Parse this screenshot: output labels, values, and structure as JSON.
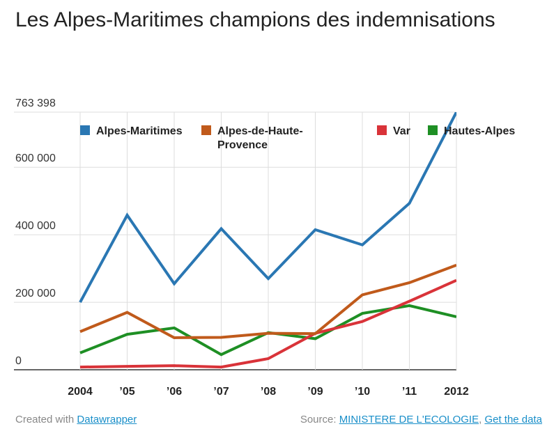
{
  "title": "Les Alpes-Maritimes champions des indemnisations",
  "chart_data": {
    "type": "line",
    "title": "Les Alpes-Maritimes champions des indemnisations",
    "x": [
      "2004",
      "’05",
      "’06",
      "’07",
      "’08",
      "’09",
      "’10",
      "’11",
      "2012"
    ],
    "yticks": [
      {
        "value": 0,
        "label": "0"
      },
      {
        "value": 200000,
        "label": "200 000"
      },
      {
        "value": 400000,
        "label": "400 000"
      },
      {
        "value": 600000,
        "label": "600 000"
      },
      {
        "value": 763398,
        "label": "763 398"
      }
    ],
    "ylim": [
      0,
      763398
    ],
    "xlabel": "",
    "ylabel": "",
    "grid": true,
    "legend_position": "top",
    "series": [
      {
        "name": "Alpes-Maritimes",
        "color": "#2a77b3",
        "values": [
          200000,
          458000,
          255000,
          418000,
          270000,
          415000,
          370000,
          493000,
          763398
        ]
      },
      {
        "name": "Alpes-de-Haute-Provence",
        "color": "#c05a1b",
        "values": [
          113000,
          170000,
          95000,
          96000,
          108000,
          107000,
          222000,
          258000,
          310000
        ]
      },
      {
        "name": "Var",
        "color": "#d93339",
        "values": [
          8000,
          10000,
          12000,
          8000,
          33000,
          108000,
          143000,
          203000,
          265000
        ]
      },
      {
        "name": "Hautes-Alpes",
        "color": "#1e8f24",
        "values": [
          50000,
          105000,
          124000,
          45000,
          110000,
          92000,
          167000,
          190000,
          157000
        ]
      }
    ]
  },
  "legend_labels": [
    [
      "Alpes-Maritimes"
    ],
    [
      "Alpes-de-Haute-",
      "Provence"
    ],
    [
      "Var"
    ],
    [
      "Hautes-Alpes"
    ]
  ],
  "footer": {
    "created_prefix": "Created with",
    "created_link": "Datawrapper",
    "source_prefix": "Source:",
    "source_link": "MINISTERE DE L'ECOLOGIE",
    "source_separator": ",",
    "data_link": "Get the data"
  }
}
